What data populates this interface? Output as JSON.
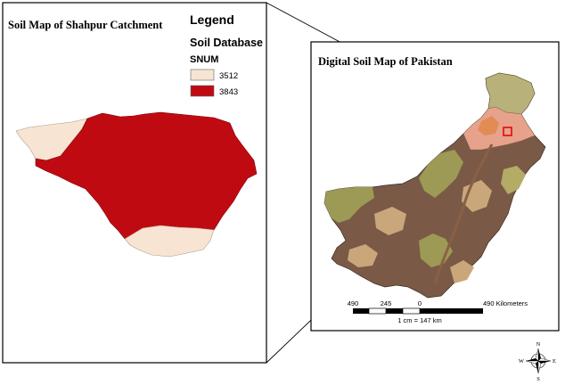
{
  "left_panel": {
    "title": "Soil Map of Shahpur Catchment",
    "legend": {
      "heading": "Legend",
      "database_label": "Soil Database",
      "field_label": "SNUM",
      "items": [
        {
          "label": "3512",
          "color": "#f7e4d2"
        },
        {
          "label": "3843",
          "color": "#c00a12"
        }
      ]
    }
  },
  "right_panel": {
    "title": "Digital Soil Map of Pakistan",
    "scale_bar": {
      "ticks": [
        "490",
        "245",
        "0",
        "490 Kilometers"
      ],
      "ratio_text": "1 cm = 147 km"
    }
  },
  "north_arrow": {
    "icon": "compass-rose-icon",
    "n": "N",
    "s": "S",
    "e": "E",
    "w": "W"
  },
  "colors": {
    "frame": "#000000",
    "locator_box": "#e00000",
    "soil_dark": "#7a5a46",
    "soil_olive": "#9c9a55",
    "soil_tan": "#c9a77a",
    "soil_salmon": "#e6a28a"
  }
}
